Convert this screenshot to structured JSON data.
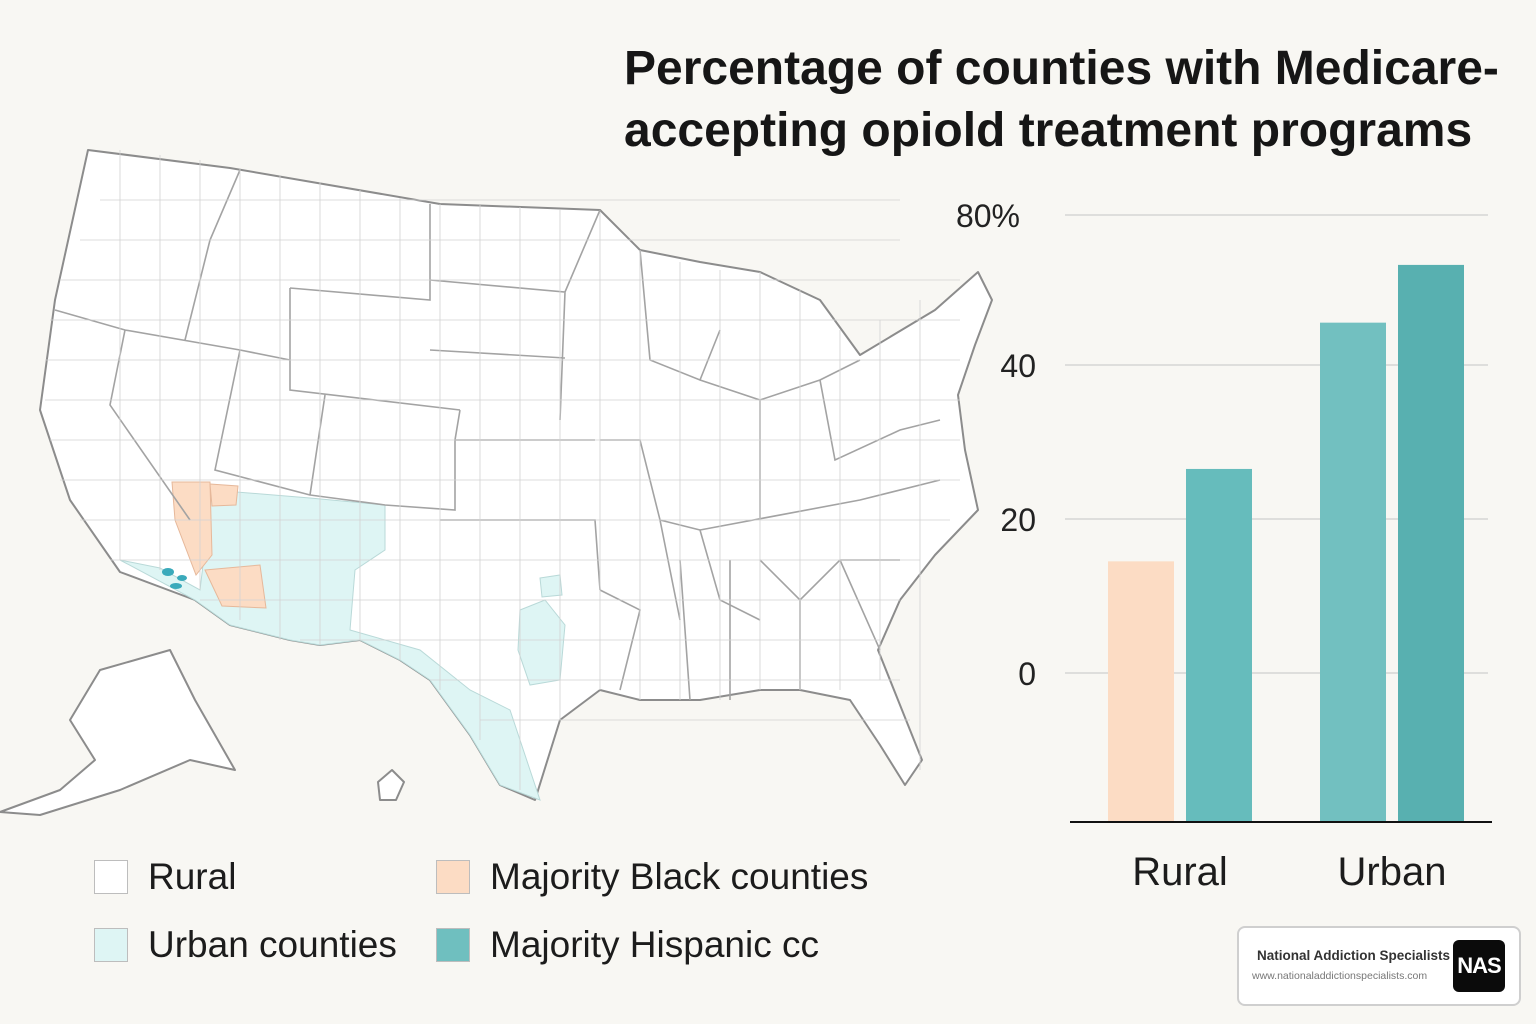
{
  "title": "Percentage of counties with Medicare-accepting opiold treatment programs",
  "colors": {
    "rural": "#ffffff",
    "majority_black": "#fcdcc4",
    "urban": "#def5f4",
    "majority_hispanic": "#6fbfbf",
    "bar_rural_black": "#fcdcc4",
    "bar_rural_hispanic": "#66bcbc",
    "bar_urban_black": "#72c0c0",
    "bar_urban_hispanic": "#58b0b0"
  },
  "legend": [
    {
      "label": "Rural",
      "color_key": "rural"
    },
    {
      "label": "Majority Black counties",
      "color_key": "majority_black"
    },
    {
      "label": "Urban counties",
      "color_key": "urban"
    },
    {
      "label": "Majority Hispanic cc",
      "color_key": "majority_hispanic"
    }
  ],
  "chart_data": {
    "type": "bar",
    "categories": [
      "Rural",
      "Urban"
    ],
    "series": [
      {
        "values": [
          14.5,
          45.5
        ]
      },
      {
        "values": [
          26.5,
          53
        ]
      }
    ],
    "yticks": [
      "80%",
      "40",
      "20",
      "0"
    ],
    "ytick_values": [
      80,
      40,
      20,
      0
    ],
    "ylim": [
      0,
      80
    ],
    "grid": true
  },
  "brand": {
    "name": "National Addiction Specialists",
    "url": "www.nationaladdictionspecialists.com",
    "logo_text": "NAS"
  }
}
